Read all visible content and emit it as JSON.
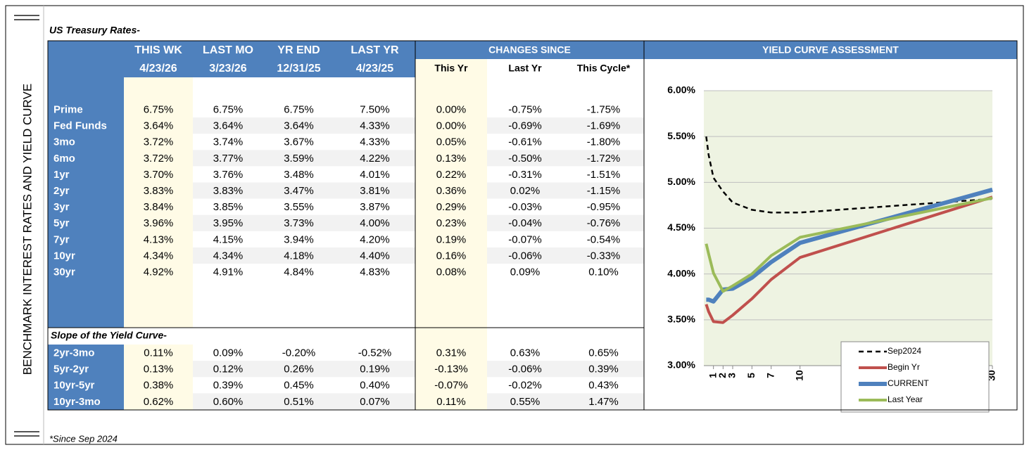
{
  "side_label": "BENCHMARK INTEREST RATES AND YIELD CURVE",
  "footnote": "*Since Sep 2024",
  "table": {
    "title": "US Treasury Rates-",
    "headers": [
      "THIS WK",
      "LAST MO",
      "YR END",
      "LAST YR"
    ],
    "dates": [
      "4/23/26",
      "3/23/26",
      "12/31/25",
      "4/23/25"
    ],
    "group_header": "CHANGES SINCE",
    "change_headers": [
      "This Yr",
      "Last Yr",
      "This Cycle*"
    ],
    "rows": [
      [
        "Prime",
        "6.75%",
        "6.75%",
        "6.75%",
        "7.50%",
        "0.00%",
        "-0.75%",
        "-1.75%"
      ],
      [
        "Fed Funds",
        "3.64%",
        "3.64%",
        "3.64%",
        "4.33%",
        "0.00%",
        "-0.69%",
        "-1.69%"
      ],
      [
        "3mo",
        "3.72%",
        "3.74%",
        "3.67%",
        "4.33%",
        "0.05%",
        "-0.61%",
        "-1.80%"
      ],
      [
        "6mo",
        "3.72%",
        "3.77%",
        "3.59%",
        "4.22%",
        "0.13%",
        "-0.50%",
        "-1.72%"
      ],
      [
        "1yr",
        "3.70%",
        "3.76%",
        "3.48%",
        "4.01%",
        "0.22%",
        "-0.31%",
        "-1.51%"
      ],
      [
        "2yr",
        "3.83%",
        "3.83%",
        "3.47%",
        "3.81%",
        "0.36%",
        "0.02%",
        "-1.15%"
      ],
      [
        "3yr",
        "3.84%",
        "3.85%",
        "3.55%",
        "3.87%",
        "0.29%",
        "-0.03%",
        "-0.95%"
      ],
      [
        "5yr",
        "3.96%",
        "3.95%",
        "3.73%",
        "4.00%",
        "0.23%",
        "-0.04%",
        "-0.76%"
      ],
      [
        "7yr",
        "4.13%",
        "4.15%",
        "3.94%",
        "4.20%",
        "0.19%",
        "-0.07%",
        "-0.54%"
      ],
      [
        "10yr",
        "4.34%",
        "4.34%",
        "4.18%",
        "4.40%",
        "0.16%",
        "-0.06%",
        "-0.33%"
      ],
      [
        "30yr",
        "4.92%",
        "4.91%",
        "4.84%",
        "4.83%",
        "0.08%",
        "0.09%",
        "0.10%"
      ]
    ],
    "slope_title": "Slope of the Yield Curve-",
    "slope_rows": [
      [
        "2yr-3mo",
        "0.11%",
        "0.09%",
        "-0.20%",
        "-0.52%",
        "0.31%",
        "0.63%",
        "0.65%"
      ],
      [
        "5yr-2yr",
        "0.13%",
        "0.12%",
        "0.26%",
        "0.19%",
        "-0.13%",
        "-0.06%",
        "0.39%"
      ],
      [
        "10yr-5yr",
        "0.38%",
        "0.39%",
        "0.45%",
        "0.40%",
        "-0.07%",
        "-0.02%",
        "0.43%"
      ],
      [
        "10yr-3mo",
        "0.62%",
        "0.60%",
        "0.51%",
        "0.07%",
        "0.11%",
        "0.55%",
        "1.47%"
      ]
    ]
  },
  "chart_data": {
    "type": "line",
    "title": "YIELD CURVE ASSESSMENT",
    "x": [
      0.25,
      0.5,
      1,
      2,
      3,
      5,
      7,
      10,
      30
    ],
    "series": [
      {
        "name": "Sep2024",
        "color": "#000000",
        "dash": true,
        "values": [
          5.5,
          5.3,
          5.05,
          4.9,
          4.78,
          4.7,
          4.67,
          4.67,
          4.82
        ]
      },
      {
        "name": "Begin Yr",
        "color": "#c0504d",
        "values": [
          3.67,
          3.59,
          3.48,
          3.47,
          3.55,
          3.73,
          3.94,
          4.18,
          4.84
        ]
      },
      {
        "name": "CURRENT",
        "color": "#4f81bd",
        "width": 6,
        "values": [
          3.72,
          3.72,
          3.7,
          3.83,
          3.84,
          3.96,
          4.13,
          4.34,
          4.92
        ]
      },
      {
        "name": "Last Year",
        "color": "#9bbb59",
        "values": [
          4.33,
          4.22,
          4.01,
          3.81,
          3.87,
          4.0,
          4.2,
          4.4,
          4.83
        ]
      }
    ],
    "xlim": [
      0,
      30
    ],
    "xticks": [
      1,
      2,
      3,
      5,
      7,
      10,
      30
    ],
    "ylim": [
      3,
      6
    ],
    "yticks": [
      {
        "value": 3,
        "label": "3.00%"
      },
      {
        "value": 3.5,
        "label": "3.50%"
      },
      {
        "value": 4,
        "label": "4.00%"
      },
      {
        "value": 4.5,
        "label": "4.50%"
      },
      {
        "value": 5,
        "label": "5.00%"
      },
      {
        "value": 5.5,
        "label": "5.50%"
      },
      {
        "value": 6,
        "label": "6.00%"
      }
    ],
    "grid": true,
    "legend": "lower right"
  }
}
